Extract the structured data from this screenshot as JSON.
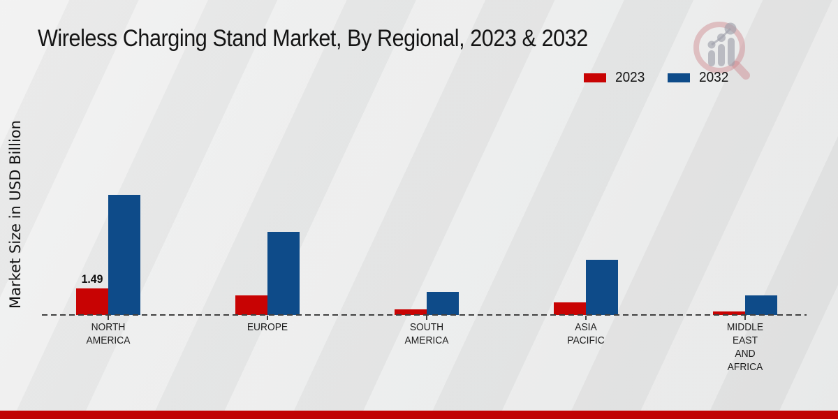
{
  "page": {
    "footer_color": "#c00304",
    "background_color": "#e8e9e9"
  },
  "header": {
    "title": "Wireless Charging Stand Market, By Regional, 2023 & 2032",
    "logo_icon": "magnifier-bar-chart-logo"
  },
  "chart_data": {
    "type": "bar",
    "title": "Wireless Charging Stand Market, By Regional, 2023 & 2032",
    "ylabel": "Market Size in USD Billion",
    "xlabel": "",
    "categories": [
      "NORTH AMERICA",
      "EUROPE",
      "SOUTH AMERICA",
      "ASIA PACIFIC",
      "MIDDLE EAST AND AFRICA"
    ],
    "category_label_lines": [
      [
        "NORTH",
        "AMERICA"
      ],
      [
        "EUROPE"
      ],
      [
        "SOUTH",
        "AMERICA"
      ],
      [
        "ASIA",
        "PACIFIC"
      ],
      [
        "MIDDLE",
        "EAST",
        "AND",
        "AFRICA"
      ]
    ],
    "series": [
      {
        "name": "2023",
        "color": "#c80303",
        "values": [
          1.49,
          1.1,
          0.31,
          0.71,
          0.2
        ]
      },
      {
        "name": "2032",
        "color": "#0e4b89",
        "values": [
          6.78,
          4.67,
          1.29,
          3.1,
          1.1
        ]
      }
    ],
    "data_label": {
      "series_index": 0,
      "category_index": 0,
      "text": "1.49"
    },
    "legend": {
      "position": "top-right",
      "entries": [
        "2023",
        "2032"
      ]
    },
    "baseline": {
      "value": 0,
      "style": "dashed",
      "color": "#3f3f3f"
    },
    "grid": false,
    "y_axis_ticks_visible": false
  }
}
